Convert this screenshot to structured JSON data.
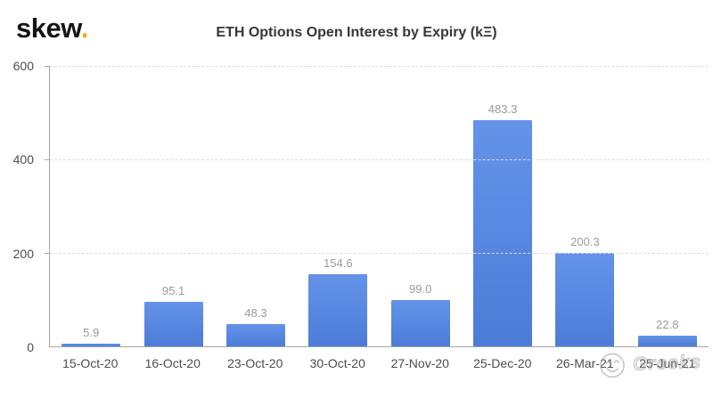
{
  "header": {
    "logo_text": "skew",
    "logo_dot": ".",
    "title": "ETH Options Open Interest by Expiry (kΞ)"
  },
  "chart_data": {
    "type": "bar",
    "title": "ETH Options Open Interest by Expiry (kΞ)",
    "categories": [
      "15-Oct-20",
      "16-Oct-20",
      "23-Oct-20",
      "30-Oct-20",
      "27-Nov-20",
      "25-Dec-20",
      "26-Mar-21",
      "25-Jun-21"
    ],
    "values": [
      5.9,
      95.1,
      48.3,
      154.6,
      99.0,
      483.3,
      200.3,
      22.8
    ],
    "xlabel": "",
    "ylabel": "",
    "ylim": [
      0,
      600
    ],
    "yticks": [
      0,
      200,
      400,
      600
    ],
    "grid": "horizontal dashed gridlines at y ticks",
    "legend": "none",
    "bar_color_top": "#6493e9",
    "bar_color_bottom": "#4d7cd8",
    "value_label_color": "#9a9a9a"
  },
  "watermark": {
    "icon": "smiley-face-icon",
    "text": "Greeks"
  },
  "colors": {
    "background": "#ffffff",
    "logo": "#141414",
    "logo_dot": "#f6a81c",
    "title": "#373737",
    "axis": "#a6a6a6",
    "grid": "#dcdcdc",
    "tick_label": "#4d4d4d"
  }
}
